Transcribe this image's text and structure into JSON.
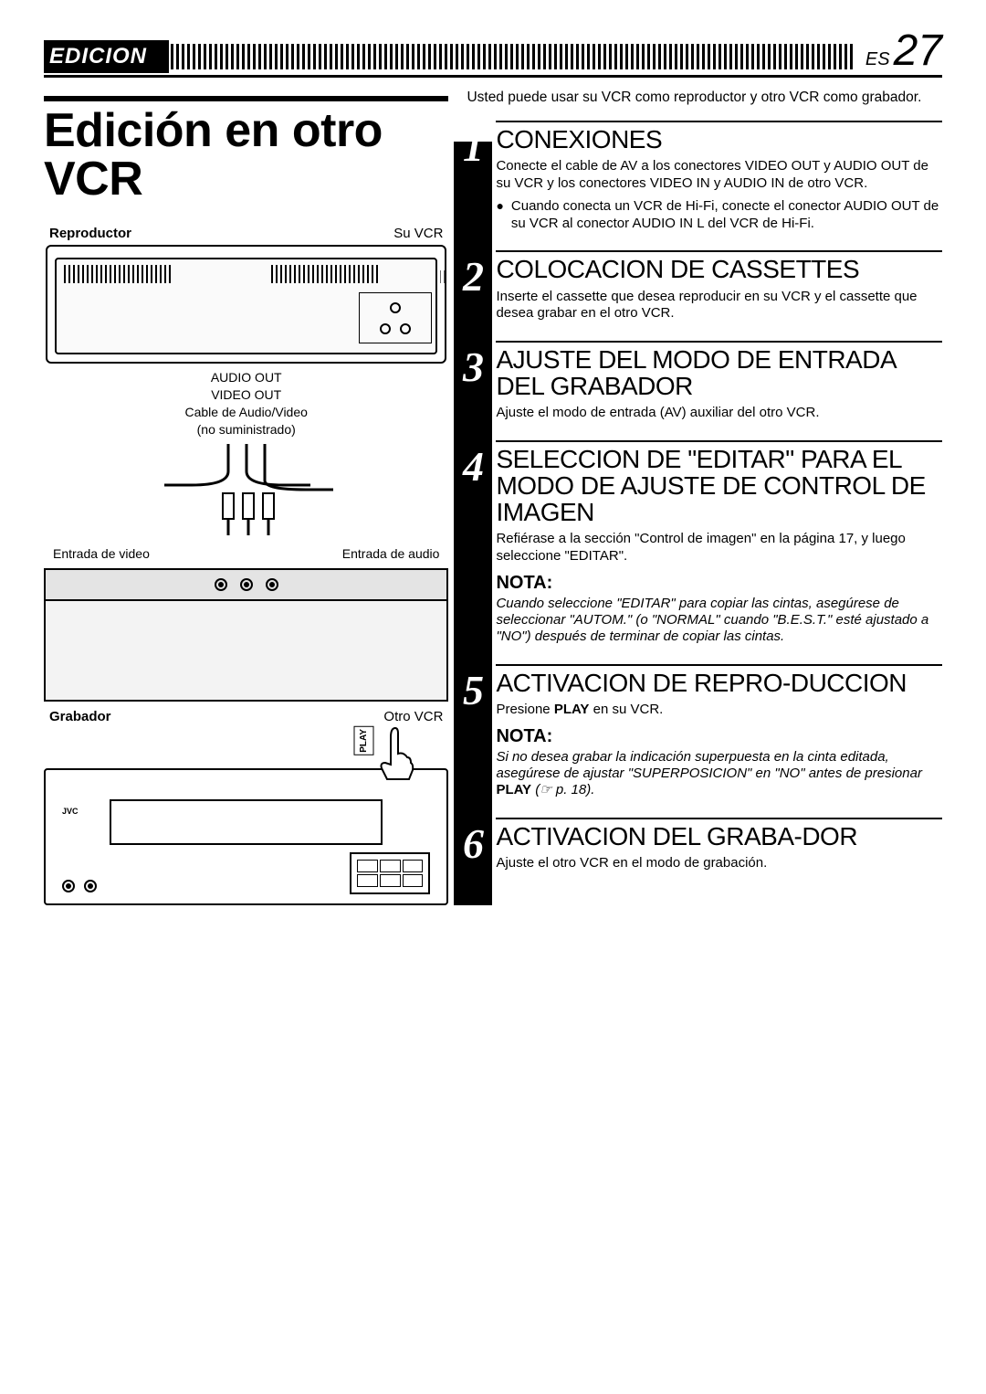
{
  "header": {
    "section": "EDICION",
    "lang": "ES",
    "page": "27"
  },
  "title": "Edición en otro VCR",
  "diagram": {
    "reproductor_label": "Reproductor",
    "su_vcr": "Su VCR",
    "audio_out": "AUDIO OUT",
    "video_out": "VIDEO OUT",
    "cable": "Cable de Audio/Video",
    "cable_sub": "(no suministrado)",
    "entrada_video": "Entrada de video",
    "entrada_audio": "Entrada de audio",
    "grabador_label": "Grabador",
    "otro_vcr": "Otro VCR",
    "play_tag": "PLAY"
  },
  "intro": "Usted puede usar su VCR como reproductor y otro VCR como grabador.",
  "steps": [
    {
      "num": "1",
      "title": "CONEXIONES",
      "body": "Conecte el cable de AV a los conectores VIDEO OUT y AUDIO OUT de su VCR y los conectores VIDEO IN y AUDIO IN de otro VCR.",
      "bullet": "Cuando conecta un VCR de Hi-Fi, conecte el conector AUDIO OUT de su VCR al conector AUDIO IN L del VCR de Hi-Fi."
    },
    {
      "num": "2",
      "title": "COLOCACION DE CASSETTES",
      "body": "Inserte el cassette que desea reproducir en su VCR y el cassette que desea grabar en el otro VCR."
    },
    {
      "num": "3",
      "title": "AJUSTE DEL MODO DE ENTRADA DEL GRABADOR",
      "body": "Ajuste el modo de entrada (AV) auxiliar del otro VCR."
    },
    {
      "num": "4",
      "title": "SELECCION DE \"EDITAR\" PARA EL MODO DE AJUSTE DE CONTROL DE IMAGEN",
      "body": "Refiérase a la sección \"Control de imagen\" en la página 17, y luego seleccione \"EDITAR\".",
      "nota": "NOTA:",
      "nota_body": "Cuando seleccione \"EDITAR\" para copiar las cintas, asegúrese de seleccionar \"AUTOM.\" (o \"NORMAL\" cuando \"B.E.S.T.\" esté ajustado a \"NO\") después de terminar de copiar las cintas."
    },
    {
      "num": "5",
      "title": "ACTIVACION DE REPRO-DUCCION",
      "body_pre": "Presione ",
      "body_bold": "PLAY",
      "body_post": " en su VCR.",
      "nota": "NOTA:",
      "nota_body_pre": "Si no desea grabar la indicación superpuesta en la cinta editada, asegúrese de ajustar \"SUPERPOSICION\" en \"NO\" antes de presionar ",
      "nota_body_bold": "PLAY",
      "nota_body_post": " (☞ p. 18)."
    },
    {
      "num": "6",
      "title": "ACTIVACION DEL GRABA-DOR",
      "body": "Ajuste el otro VCR en el modo de grabación."
    }
  ]
}
